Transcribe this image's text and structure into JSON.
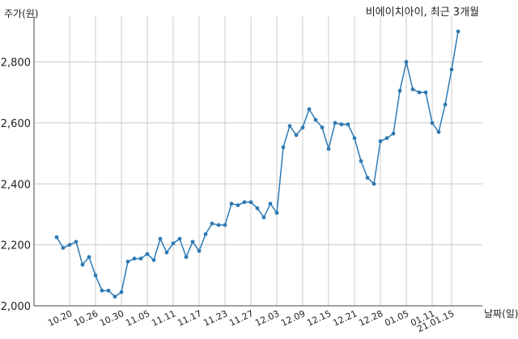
{
  "chart_data": {
    "type": "line",
    "title": "비에이치아이, 최근 3개월",
    "ylabel": "주가(원)",
    "xlabel": "날짜(일)",
    "ylim": [
      2000,
      2950
    ],
    "yticks": [
      2000,
      2200,
      2400,
      2600,
      2800
    ],
    "ytick_labels": [
      "2,000",
      "2,200",
      "2,400",
      "2,600",
      "2,800"
    ],
    "grid": true,
    "color": "#2e7ab4",
    "xtick_labels": [
      "10.20",
      "10.26",
      "10.30",
      "11.05",
      "11.11",
      "11.17",
      "11.23",
      "11.27",
      "12.03",
      "12.09",
      "12.15",
      "12.21",
      "12.28",
      "01.05",
      "01.11",
      "21.01.15"
    ],
    "xtick_index": [
      2,
      6,
      10,
      14,
      18,
      22,
      26,
      30,
      34,
      38,
      42,
      46,
      50,
      54,
      58,
      61
    ],
    "series": [
      {
        "values": [
          2225,
          2190,
          2200,
          2210,
          2135,
          2160,
          2100,
          2050,
          2050,
          2030,
          2045,
          2145,
          2155,
          2155,
          2170,
          2150,
          2220,
          2175,
          2205,
          2220,
          2160,
          2210,
          2180,
          2235,
          2270,
          2265,
          2265,
          2335,
          2330,
          2340,
          2340,
          2320,
          2290,
          2335,
          2305,
          2520,
          2590,
          2560,
          2585,
          2645,
          2610,
          2585,
          2515,
          2600,
          2595,
          2595,
          2550,
          2475,
          2420,
          2400,
          2540,
          2550,
          2565,
          2705,
          2800,
          2710,
          2700,
          2700,
          2600,
          2570,
          2660,
          2775,
          2900
        ]
      }
    ]
  }
}
